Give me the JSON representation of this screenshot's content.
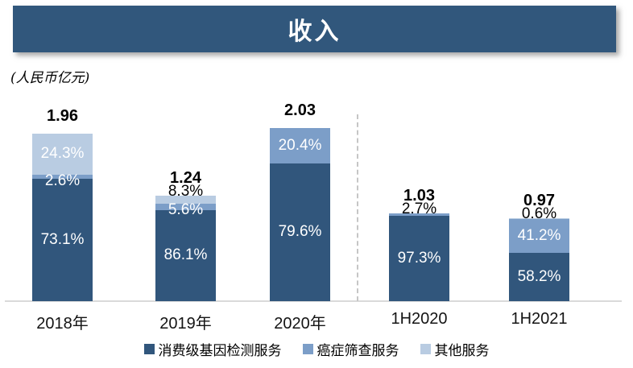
{
  "header": {
    "title": "收入"
  },
  "unit_label": "(人民币亿元)",
  "colors": {
    "title_bar": "#31577C",
    "consumer": "#31567C",
    "cancer": "#7C9EC8",
    "other": "#B9CCE2",
    "axis_line": "#DADADA",
    "divider_line": "#C6C6C6",
    "label_white": "#FFFFFF",
    "label_black": "#000000"
  },
  "chart_data": {
    "type": "bar",
    "stacked": true,
    "title": "收入",
    "unit": "人民币亿元",
    "categories": [
      "2018年",
      "2019年",
      "2020年",
      "1H2020",
      "1H2021"
    ],
    "totals": [
      1.96,
      1.24,
      2.03,
      1.03,
      0.97
    ],
    "total_labels": [
      "1.96",
      "1.24",
      "2.03",
      "1.03",
      "0.97"
    ],
    "series": [
      {
        "name": "消费级基因检测服务",
        "color_key": "consumer",
        "values_pct": [
          73.1,
          86.1,
          79.6,
          97.3,
          58.2
        ],
        "labels": [
          "73.1%",
          "86.1%",
          "79.6%",
          "97.3%",
          "58.2%"
        ]
      },
      {
        "name": "癌症筛查服务",
        "color_key": "cancer",
        "values_pct": [
          2.6,
          5.6,
          20.4,
          2.7,
          41.2
        ],
        "labels": [
          "2.6%",
          "5.6%",
          "20.4%",
          "2.7%",
          "41.2%"
        ]
      },
      {
        "name": "其他服务",
        "color_key": "other",
        "values_pct": [
          24.3,
          8.3,
          0,
          0,
          0.6
        ],
        "labels": [
          "24.3%",
          "8.3%",
          "",
          "",
          "0.6%"
        ]
      }
    ],
    "legend": [
      "消费级基因检测服务",
      "癌症筛查服务",
      "其他服务"
    ],
    "divider_between": [
      "2020年",
      "1H2020"
    ],
    "ylim": [
      0,
      2.2
    ],
    "grid": false,
    "legend_position": "bottom"
  }
}
